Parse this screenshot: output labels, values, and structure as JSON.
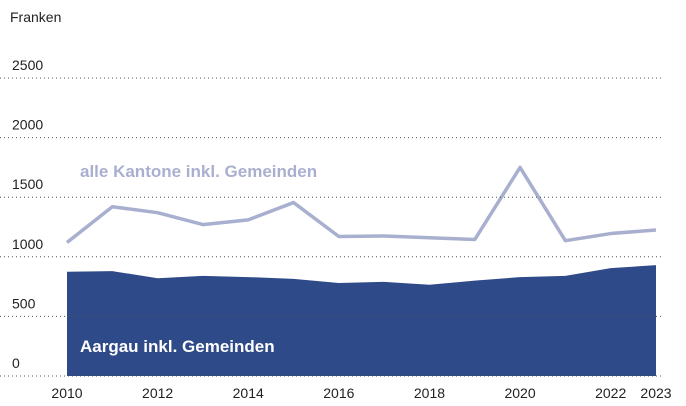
{
  "chart_data": {
    "type": "area-line",
    "y_axis_label": "Franken",
    "x": [
      2010,
      2011,
      2012,
      2013,
      2014,
      2015,
      2016,
      2017,
      2018,
      2019,
      2020,
      2021,
      2022,
      2023
    ],
    "series": [
      {
        "name": "Aargau inkl. Gemeinden",
        "kind": "area",
        "color": "#2f4a88",
        "values": [
          875,
          880,
          820,
          840,
          830,
          815,
          780,
          790,
          765,
          800,
          830,
          840,
          905,
          930
        ]
      },
      {
        "name": "alle Kantone inkl. Gemeinden",
        "kind": "line",
        "color": "#a9b0cf",
        "values": [
          1120,
          1420,
          1370,
          1270,
          1310,
          1455,
          1170,
          1175,
          1160,
          1145,
          1750,
          1135,
          1195,
          1225
        ]
      }
    ],
    "xlim": [
      2010,
      2023
    ],
    "xticks": [
      2010,
      2012,
      2014,
      2016,
      2018,
      2020,
      2022,
      2023
    ],
    "ylim": [
      0,
      2500
    ],
    "yticks": [
      0,
      500,
      1000,
      1500,
      2000,
      2500
    ],
    "grid": true
  }
}
